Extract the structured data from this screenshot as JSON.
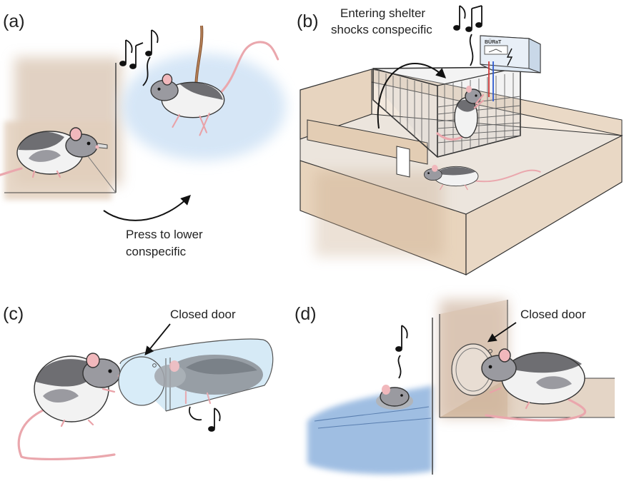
{
  "panels": [
    {
      "label": "(a)",
      "caption_lines": [
        "Press to lower",
        "conspecific"
      ]
    },
    {
      "label": "(b)",
      "caption_lines": [
        "Entering shelter",
        "shocks conspecific"
      ],
      "device_text": "BÜRaT"
    },
    {
      "label": "(c)",
      "caption_lines": [
        "Closed door"
      ]
    },
    {
      "label": "(d)",
      "caption_lines": [
        "Closed door"
      ]
    }
  ],
  "colors": {
    "wall_tan": "#e8d6c2",
    "wall_dark": "#b89f87",
    "water_blue": "#8fb3de",
    "haze_blue": "#cfe2f5",
    "glass_blue": "#cfe6f5",
    "rat_grey": "#6e6e72",
    "rat_pink": "#f1b8bc",
    "rope_brown": "#8a5a3a",
    "wire_red": "#d23a3a",
    "wire_blue": "#2f5bd0"
  }
}
